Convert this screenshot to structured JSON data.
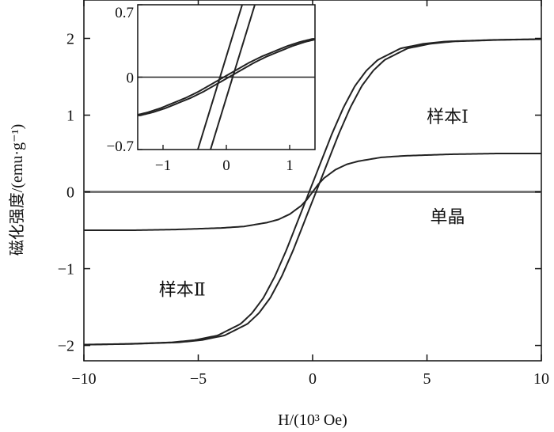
{
  "chart_data": [
    {
      "type": "line",
      "xlabel": "H/(10³ Oe)",
      "ylabel": "磁化强度/(emu·g⁻¹)",
      "xlim": [
        -10,
        10
      ],
      "ylim": [
        -2.2,
        2.5
      ],
      "xticks": [
        -10,
        -5,
        0,
        5,
        10
      ],
      "xtick_labels": [
        "−10",
        "−5",
        "0",
        "5",
        "10"
      ],
      "yticks": [
        -2,
        -1,
        0,
        1,
        2
      ],
      "ytick_labels": [
        "−2",
        "−1",
        "0",
        "1",
        "2"
      ],
      "grid": false,
      "series": [
        {
          "name": "样本Ⅰ",
          "x": [
            -10,
            -8,
            -6,
            -5,
            -4,
            -3,
            -2,
            -1.5,
            -1,
            -0.5,
            -0.25,
            0,
            0.25,
            0.5,
            1,
            1.5,
            2,
            3,
            4,
            5,
            6,
            8,
            10
          ],
          "y": [
            -0.5,
            -0.5,
            -0.49,
            -0.48,
            -0.47,
            -0.45,
            -0.4,
            -0.36,
            -0.29,
            -0.18,
            -0.1,
            0.0,
            0.1,
            0.18,
            0.29,
            0.36,
            0.4,
            0.45,
            0.47,
            0.48,
            0.49,
            0.5,
            0.5
          ],
          "color": "#222222"
        },
        {
          "name": "样本Ⅱ",
          "x": [
            -10,
            -8,
            -6,
            -5,
            -4,
            -3,
            -2.5,
            -2,
            -1.5,
            -1,
            -0.5,
            0,
            0.5,
            1,
            1.5,
            2,
            2.5,
            3,
            4,
            5,
            6,
            8,
            10
          ],
          "y": [
            -1.99,
            -1.98,
            -1.96,
            -1.93,
            -1.87,
            -1.72,
            -1.58,
            -1.38,
            -1.1,
            -0.76,
            -0.38,
            0.0,
            0.38,
            0.76,
            1.1,
            1.38,
            1.58,
            1.72,
            1.87,
            1.93,
            1.96,
            1.98,
            1.99
          ],
          "hysteresis_shift": 0.15,
          "color": "#222222"
        },
        {
          "name": "单晶",
          "x": [
            -10,
            10
          ],
          "y": [
            0,
            0
          ],
          "color": "#777777"
        }
      ],
      "annotations": [
        {
          "text": "样本Ⅰ",
          "x": 5.9,
          "y": 0.9
        },
        {
          "text": "单晶",
          "x": 5.9,
          "y": -0.4
        },
        {
          "text": "样本Ⅱ",
          "x": -5.7,
          "y": -1.35
        }
      ]
    },
    {
      "type": "line",
      "role": "inset",
      "xlim": [
        -1.4,
        1.4
      ],
      "ylim": [
        -0.7,
        0.7
      ],
      "xticks": [
        -1,
        0,
        1
      ],
      "xtick_labels": [
        "−1",
        "0",
        "1"
      ],
      "yticks": [
        -0.7,
        0,
        0.7
      ],
      "ytick_labels": [
        "−0.7",
        "0",
        "0.7"
      ],
      "grid": false,
      "series": [
        {
          "name": "样本Ⅰ",
          "x": [
            -1.4,
            -1.2,
            -1,
            -0.8,
            -0.6,
            -0.4,
            -0.2,
            0,
            0.2,
            0.4,
            0.6,
            0.8,
            1,
            1.2,
            1.4
          ],
          "y": [
            -0.37,
            -0.34,
            -0.3,
            -0.25,
            -0.2,
            -0.14,
            -0.07,
            0.0,
            0.07,
            0.14,
            0.2,
            0.25,
            0.3,
            0.34,
            0.37
          ],
          "hysteresis_shift": 0.04,
          "color": "#222222"
        },
        {
          "name": "样本Ⅱ",
          "x": [
            -0.6,
            -0.4,
            -0.2,
            0,
            0.2,
            0.4,
            0.6
          ],
          "y": [
            -1.2,
            -0.8,
            -0.4,
            0.0,
            0.4,
            0.8,
            1.2
          ],
          "hysteresis_shift": 0.1,
          "color": "#222222"
        },
        {
          "name": "单晶",
          "x": [
            -1.4,
            1.4
          ],
          "y": [
            0,
            0
          ],
          "color": "#222222"
        }
      ]
    }
  ]
}
